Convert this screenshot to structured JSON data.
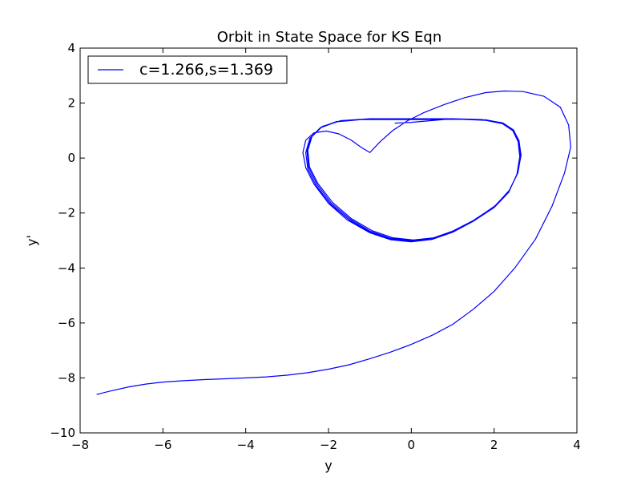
{
  "chart_data": {
    "type": "line",
    "title": "Orbit in State Space for KS Eqn",
    "xlabel": "y",
    "ylabel": "y'",
    "xlim": [
      -8,
      4
    ],
    "ylim": [
      -10,
      4
    ],
    "xticks": [
      -8,
      -6,
      -4,
      -2,
      0,
      2,
      4
    ],
    "yticks": [
      -10,
      -8,
      -6,
      -4,
      -2,
      0,
      2,
      4
    ],
    "grid": false,
    "legend": {
      "position": "top-left"
    },
    "series": [
      {
        "name": "c=1.266,s=1.369",
        "color": "#0000ff",
        "points": [
          [
            -7.6,
            -8.6
          ],
          [
            -7.2,
            -8.45
          ],
          [
            -6.8,
            -8.32
          ],
          [
            -6.4,
            -8.22
          ],
          [
            -6.0,
            -8.15
          ],
          [
            -5.5,
            -8.1
          ],
          [
            -5.0,
            -8.06
          ],
          [
            -4.5,
            -8.03
          ],
          [
            -4.0,
            -8.0
          ],
          [
            -3.5,
            -7.96
          ],
          [
            -3.0,
            -7.9
          ],
          [
            -2.5,
            -7.81
          ],
          [
            -2.0,
            -7.68
          ],
          [
            -1.5,
            -7.52
          ],
          [
            -1.0,
            -7.3
          ],
          [
            -0.5,
            -7.06
          ],
          [
            0.0,
            -6.78
          ],
          [
            0.5,
            -6.45
          ],
          [
            1.0,
            -6.05
          ],
          [
            1.5,
            -5.5
          ],
          [
            2.0,
            -4.85
          ],
          [
            2.5,
            -4.0
          ],
          [
            3.0,
            -2.95
          ],
          [
            3.4,
            -1.75
          ],
          [
            3.7,
            -0.55
          ],
          [
            3.85,
            0.4
          ],
          [
            3.8,
            1.2
          ],
          [
            3.6,
            1.85
          ],
          [
            3.2,
            2.25
          ],
          [
            2.7,
            2.42
          ],
          [
            2.25,
            2.44
          ],
          [
            1.8,
            2.38
          ],
          [
            1.3,
            2.2
          ],
          [
            0.8,
            1.95
          ],
          [
            0.3,
            1.65
          ],
          [
            -0.1,
            1.35
          ],
          [
            -0.45,
            1.0
          ],
          [
            -0.75,
            0.6
          ],
          [
            -1.0,
            0.2
          ],
          [
            -1.2,
            0.38
          ],
          [
            -1.45,
            0.65
          ],
          [
            -1.75,
            0.88
          ],
          [
            -2.05,
            0.98
          ],
          [
            -2.35,
            0.92
          ],
          [
            -2.55,
            0.65
          ],
          [
            -2.62,
            0.2
          ],
          [
            -2.55,
            -0.35
          ],
          [
            -2.35,
            -0.95
          ],
          [
            -2.0,
            -1.65
          ],
          [
            -1.55,
            -2.25
          ],
          [
            -1.0,
            -2.72
          ],
          [
            -0.5,
            -2.97
          ],
          [
            0.0,
            -3.05
          ],
          [
            0.5,
            -2.96
          ],
          [
            1.0,
            -2.7
          ],
          [
            1.5,
            -2.3
          ],
          [
            2.0,
            -1.8
          ],
          [
            2.35,
            -1.25
          ],
          [
            2.55,
            -0.6
          ],
          [
            2.62,
            0.05
          ],
          [
            2.58,
            0.6
          ],
          [
            2.45,
            1.0
          ],
          [
            2.2,
            1.25
          ],
          [
            1.8,
            1.37
          ],
          [
            1.2,
            1.41
          ],
          [
            0.4,
            1.4
          ],
          [
            -0.4,
            1.4
          ],
          [
            -1.2,
            1.4
          ],
          [
            -1.8,
            1.32
          ],
          [
            -2.2,
            1.1
          ],
          [
            -2.45,
            0.72
          ],
          [
            -2.55,
            0.2
          ],
          [
            -2.5,
            -0.4
          ],
          [
            -2.3,
            -1.0
          ],
          [
            -1.95,
            -1.68
          ],
          [
            -1.5,
            -2.25
          ],
          [
            -1.0,
            -2.7
          ],
          [
            -0.5,
            -2.95
          ],
          [
            0.0,
            -3.02
          ],
          [
            0.5,
            -2.93
          ],
          [
            1.0,
            -2.67
          ],
          [
            1.5,
            -2.28
          ],
          [
            2.0,
            -1.78
          ],
          [
            2.35,
            -1.22
          ],
          [
            2.56,
            -0.58
          ],
          [
            2.64,
            0.08
          ],
          [
            2.6,
            0.62
          ],
          [
            2.47,
            1.02
          ],
          [
            2.22,
            1.27
          ],
          [
            1.8,
            1.38
          ],
          [
            1.2,
            1.42
          ],
          [
            0.4,
            1.42
          ],
          [
            -0.4,
            1.42
          ],
          [
            -1.2,
            1.41
          ],
          [
            -1.8,
            1.33
          ],
          [
            -2.18,
            1.12
          ],
          [
            -2.42,
            0.75
          ],
          [
            -2.52,
            0.25
          ],
          [
            -2.48,
            -0.35
          ],
          [
            -2.28,
            -0.95
          ],
          [
            -1.93,
            -1.65
          ],
          [
            -1.48,
            -2.22
          ],
          [
            -1.0,
            -2.66
          ],
          [
            -0.5,
            -2.92
          ],
          [
            0.0,
            -3.0
          ],
          [
            0.5,
            -2.92
          ],
          [
            1.0,
            -2.66
          ],
          [
            1.5,
            -2.27
          ],
          [
            2.0,
            -1.77
          ],
          [
            2.36,
            -1.2
          ],
          [
            2.57,
            -0.56
          ],
          [
            2.65,
            0.1
          ],
          [
            2.6,
            0.64
          ],
          [
            2.46,
            1.03
          ],
          [
            2.2,
            1.28
          ],
          [
            1.8,
            1.39
          ],
          [
            1.0,
            1.43
          ],
          [
            0.0,
            1.43
          ],
          [
            -1.0,
            1.43
          ],
          [
            -1.7,
            1.36
          ],
          [
            -2.15,
            1.15
          ],
          [
            -2.4,
            0.78
          ],
          [
            -2.5,
            0.28
          ],
          [
            -2.46,
            -0.32
          ],
          [
            -2.26,
            -0.92
          ],
          [
            -1.9,
            -1.62
          ],
          [
            -1.45,
            -2.2
          ],
          [
            -0.95,
            -2.64
          ],
          [
            -0.45,
            -2.9
          ],
          [
            0.05,
            -2.98
          ],
          [
            0.55,
            -2.9
          ],
          [
            1.05,
            -2.63
          ],
          [
            1.55,
            -2.23
          ],
          [
            2.03,
            -1.73
          ],
          [
            2.38,
            -1.15
          ],
          [
            2.58,
            -0.5
          ],
          [
            2.65,
            0.12
          ],
          [
            2.59,
            0.66
          ],
          [
            2.44,
            1.05
          ],
          [
            2.18,
            1.29
          ],
          [
            1.7,
            1.4
          ],
          [
            1.0,
            1.43
          ],
          [
            0.0,
            1.3
          ],
          [
            -0.4,
            1.27
          ]
        ]
      }
    ]
  }
}
